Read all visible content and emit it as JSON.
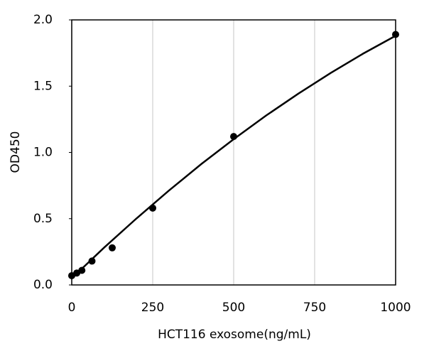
{
  "chart_data": {
    "type": "scatter",
    "x_label": "HCT116 exosome(ng/mL)",
    "y_label": "OD450",
    "series": [
      {
        "color": "#000000",
        "x": [
          0,
          15.6,
          31.25,
          62.5,
          125,
          250,
          500,
          1000
        ],
        "values": [
          0.07,
          0.09,
          0.11,
          0.18,
          0.28,
          0.58,
          1.12,
          1.89
        ]
      },
      {
        "color": "#000000",
        "line": true,
        "x": [
          0,
          100,
          200,
          300,
          400,
          500,
          600,
          700,
          800,
          900,
          1000
        ],
        "values": [
          0.05,
          0.282,
          0.502,
          0.712,
          0.912,
          1.1,
          1.278,
          1.444,
          1.6,
          1.746,
          1.88
        ]
      }
    ],
    "xlim": [
      0,
      1000
    ],
    "xticks": [
      0,
      250,
      500,
      750,
      1000
    ],
    "ylim": [
      0,
      2
    ],
    "yticks": [
      {
        "value": 0,
        "label": "0.0"
      },
      {
        "value": 0.5,
        "label": "0.5"
      },
      {
        "value": 1,
        "label": "1.0"
      },
      {
        "value": 1.5,
        "label": "1.5"
      },
      {
        "value": 2,
        "label": "2.0"
      }
    ],
    "grid": "x"
  }
}
